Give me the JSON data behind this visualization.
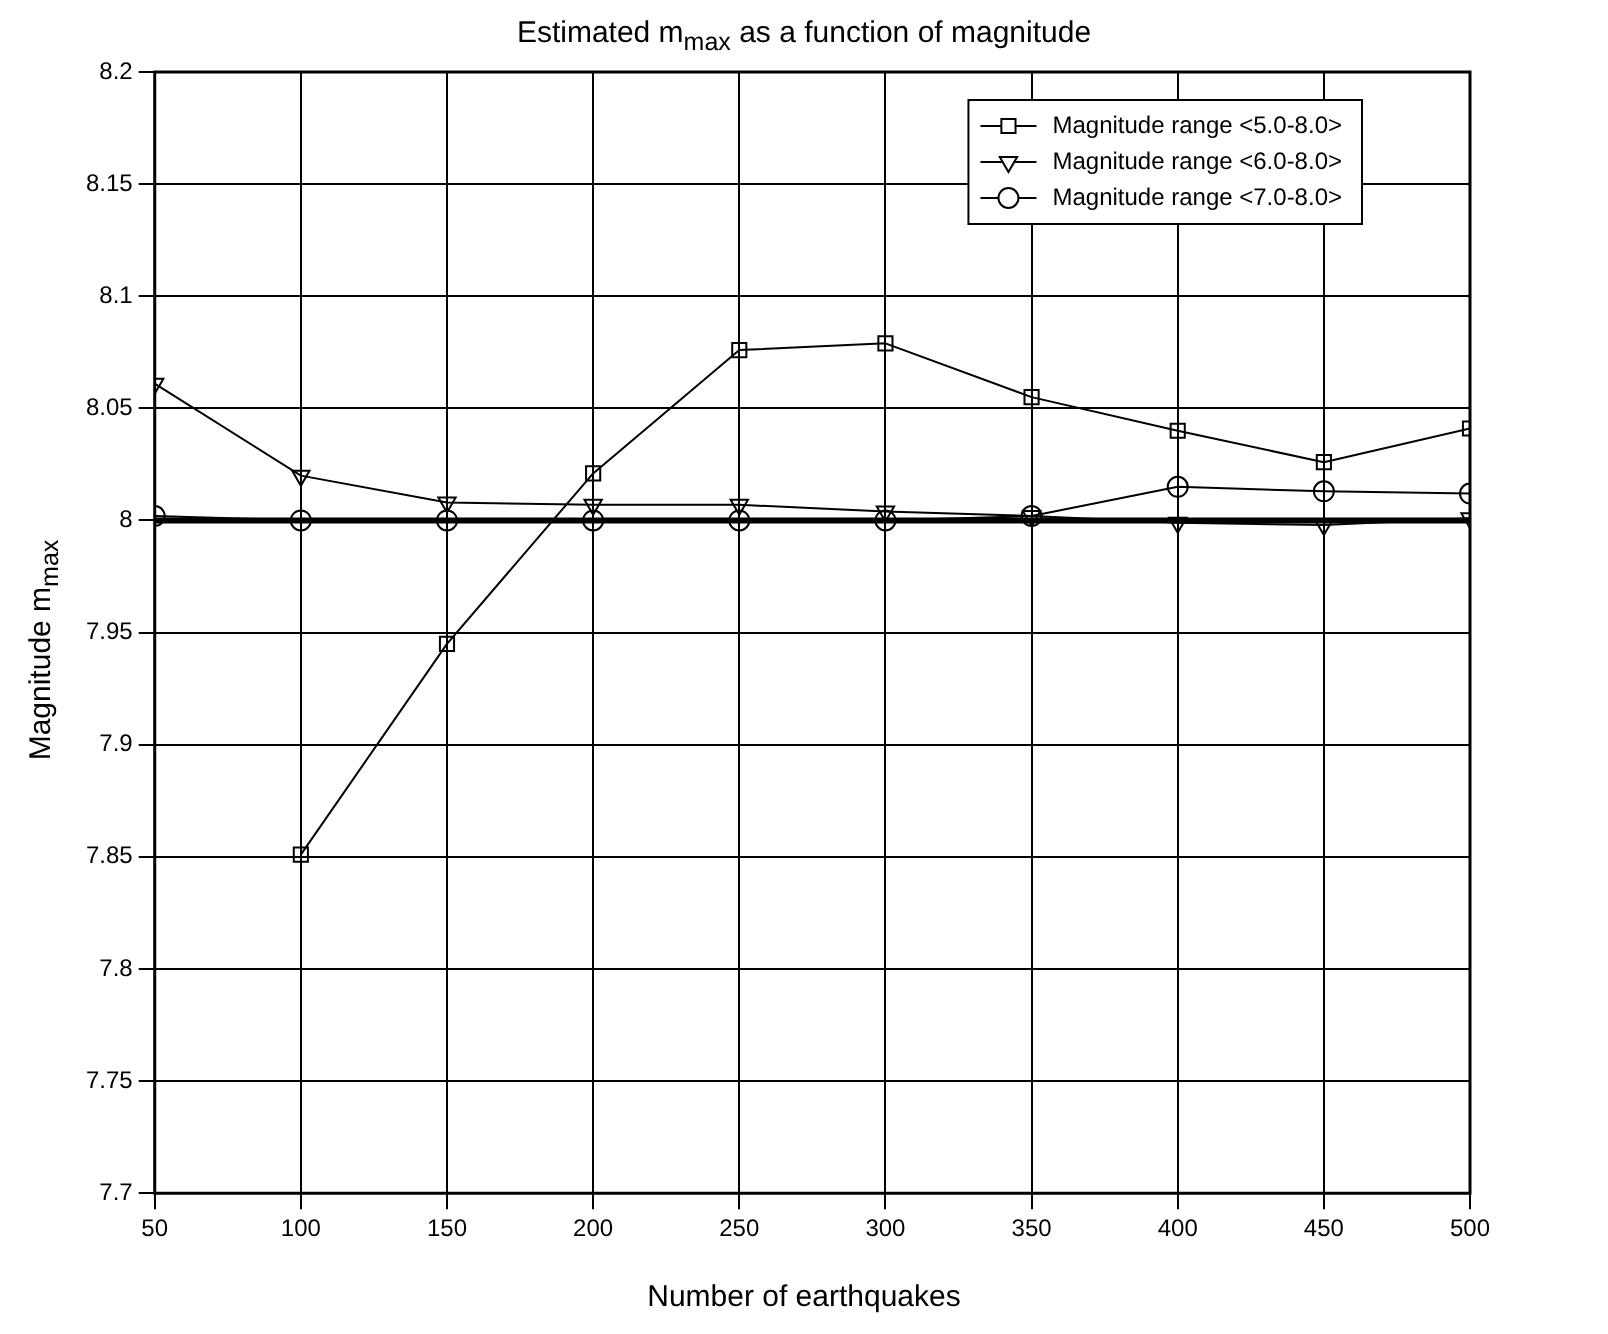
{
  "chart_data": {
    "type": "line",
    "title": "Estimated m$_{max}$ as a function of magnitude",
    "xlabel": "Number of earthquakes",
    "ylabel": "Magnitude m$_{max}$",
    "x": [
      50,
      100,
      150,
      200,
      250,
      300,
      350,
      400,
      450,
      500
    ],
    "series": [
      {
        "name": "Magnitude range <5.0-8.0>",
        "color": "#000000",
        "marker": "square",
        "values": [
          null,
          7.851,
          7.945,
          8.021,
          8.076,
          8.079,
          8.055,
          8.04,
          8.026,
          8.041
        ]
      },
      {
        "name": "Magnitude range <6.0-8.0>",
        "color": "#000000",
        "marker": "triangle",
        "values": [
          8.061,
          8.02,
          8.008,
          8.007,
          8.007,
          8.004,
          8.002,
          7.999,
          7.998,
          8.001
        ]
      },
      {
        "name": "Magnitude range <7.0-8.0>",
        "color": "#000000",
        "marker": "circle",
        "values": [
          8.002,
          8.0,
          8.0,
          8.0,
          8.0,
          8.0,
          8.002,
          8.015,
          8.013,
          8.012
        ]
      }
    ],
    "ref_lines": [
      {
        "axis": "y",
        "value": 8.0,
        "color": "#000000"
      }
    ],
    "xlim": [
      50,
      500
    ],
    "xticks": [
      50,
      100,
      150,
      200,
      250,
      300,
      350,
      400,
      450,
      500
    ],
    "ylim": [
      7.7,
      8.2
    ],
    "yticks": [
      7.7,
      7.75,
      7.8,
      7.85,
      7.9,
      7.95,
      8,
      8.05,
      8.1,
      8.15,
      8.2
    ],
    "grid": true,
    "legend": "top right",
    "line_style": "solid"
  }
}
